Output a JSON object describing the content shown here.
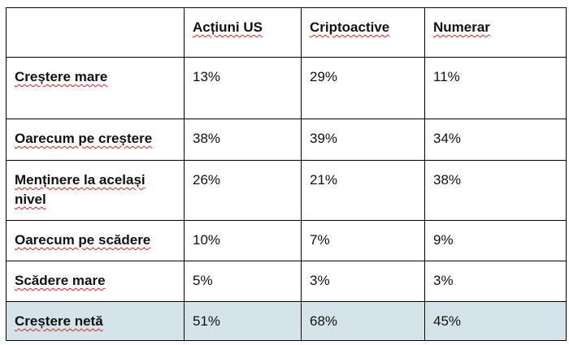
{
  "table": {
    "columns": [
      "",
      "Acțiuni US",
      "Criptoactive",
      "Numerar"
    ],
    "rows": [
      {
        "label": "Creștere mare",
        "values": [
          "13%",
          "29%",
          "11%"
        ]
      },
      {
        "label": "Oarecum pe creștere",
        "values": [
          "38%",
          "39%",
          "34%"
        ]
      },
      {
        "label": "Menținere la același nivel",
        "values": [
          "26%",
          "21%",
          "38%"
        ]
      },
      {
        "label": "Oarecum pe scădere",
        "values": [
          "10%",
          "7%",
          "9%"
        ]
      },
      {
        "label": "Scădere mare",
        "values": [
          "5%",
          "3%",
          "3%"
        ]
      },
      {
        "label": "Creștere netă",
        "values": [
          "51%",
          "68%",
          "45%"
        ]
      }
    ],
    "highlight_color": "#d5e4e9"
  }
}
